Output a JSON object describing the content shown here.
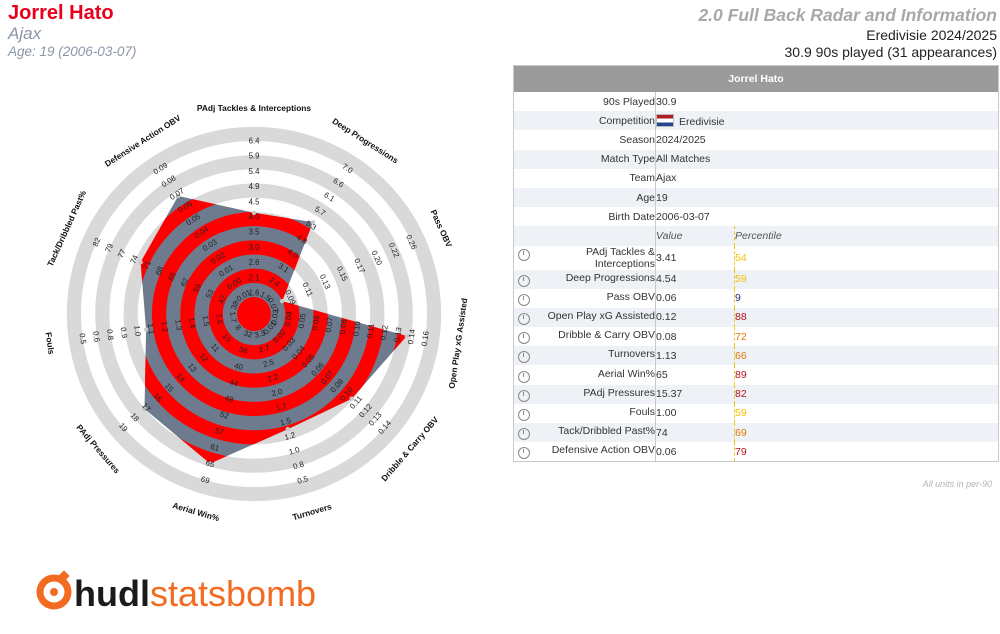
{
  "header": {
    "player_name": "Jorrel Hato",
    "team": "Ajax",
    "age_line": "Age: 19 (2006-03-07)",
    "report_title": "2.0 Full Back Radar and Information",
    "league_line": "Eredivisie 2024/2025",
    "played_line": "30.9 90s played (31 appearances)"
  },
  "info_table": {
    "title": "Jorrel Hato",
    "rows": [
      {
        "label": "90s Played",
        "value": "30.9"
      },
      {
        "label": "Competition",
        "value": "Eredivisie"
      },
      {
        "label": "Season",
        "value": "2024/2025"
      },
      {
        "label": "Match Type",
        "value": "All Matches"
      },
      {
        "label": "Team",
        "value": "Ajax"
      },
      {
        "label": "Age",
        "value": "19"
      },
      {
        "label": "Birth Date",
        "value": "2006-03-07"
      }
    ],
    "value_header": "Value",
    "percentile_header": "Percentile"
  },
  "footnote": "All units in per-90",
  "logo": {
    "part1": "hudl",
    "part2": "statsbomb"
  },
  "colors": {
    "red": "#ff0000",
    "slate": "#6e7a8e",
    "ring": "#d9d9d9",
    "pct_high": "#b5121b",
    "pct_mid": "#e07b00",
    "pct_low": "#f3c000",
    "pct_bottom": "#1f2d6e"
  },
  "chart_data": {
    "type": "radar",
    "metrics": [
      {
        "name": "PAdj Tackles & Interceptions",
        "value": "3.41",
        "percentile": 54,
        "ticks": [
          "1.6",
          "2.1",
          "2.6",
          "3.0",
          "3.5",
          "4.0",
          "4.5",
          "4.9",
          "5.4",
          "5.9",
          "6.4"
        ]
      },
      {
        "name": "Deep Progressions",
        "value": "4.54",
        "percentile": 59,
        "ticks": [
          "1.5",
          "2.4",
          "3.1",
          "4.0",
          "4.8",
          "5.3",
          "5.7",
          "6.1",
          "6.6",
          "7.0"
        ]
      },
      {
        "name": "Pass OBV",
        "value": "0.06",
        "percentile": 9,
        "ticks": [
          "0.07",
          "0.09",
          "0.11",
          "0.13",
          "0.15",
          "0.17",
          "0.20",
          "0.22",
          "0.26"
        ]
      },
      {
        "name": "Open Play xG Assisted",
        "value": "0.12",
        "percentile": 88,
        "ticks": [
          "0.03",
          "0.04",
          "0.05",
          "0.06",
          "0.07",
          "0.08",
          "0.10",
          "0.11",
          "0.12",
          "0.13",
          "0.14",
          "0.16"
        ]
      },
      {
        "name": "Dribble & Carry OBV",
        "value": "0.08",
        "percentile": 72,
        "ticks": [
          "0.01",
          "0.02",
          "0.03",
          "0.04",
          "0.05",
          "0.06",
          "0.07",
          "0.09",
          "0.10",
          "0.11",
          "0.12",
          "0.13",
          "0.14"
        ]
      },
      {
        "name": "Turnovers",
        "value": "1.13",
        "percentile": 66,
        "ticks": [
          "3.3",
          "2.7",
          "2.5",
          "2.2",
          "2.0",
          "1.7",
          "1.5",
          "1.2",
          "1.0",
          "0.8",
          "0.5"
        ]
      },
      {
        "name": "Aerial Win%",
        "value": "65",
        "percentile": 89,
        "ticks": [
          "32",
          "36",
          "40",
          "44",
          "48",
          "52",
          "57",
          "61",
          "65",
          "69"
        ]
      },
      {
        "name": "PAdj Pressures",
        "value": "15.37",
        "percentile": 82,
        "ticks": [
          "8",
          "10",
          "11",
          "12",
          "13",
          "14",
          "15",
          "16",
          "17",
          "18",
          "19"
        ]
      },
      {
        "name": "Fouls",
        "value": "1.00",
        "percentile": 59,
        "ticks": [
          "1.7",
          "1.6",
          "1.5",
          "1.4",
          "1.3",
          "1.2",
          "1.1",
          "1.0",
          "0.9",
          "0.8",
          "0.6",
          "0.5"
        ]
      },
      {
        "name": "Tack/Dribbled Past%",
        "value": "74",
        "percentile": 69,
        "ticks": [
          "38",
          "47",
          "53",
          "59",
          "62",
          "65",
          "68",
          "71",
          "74",
          "77",
          "79",
          "82"
        ]
      },
      {
        "name": "Defensive Action OBV",
        "value": "0.06",
        "percentile": 79,
        "ticks": [
          "-0.01",
          "0.00",
          "0.01",
          "0.02",
          "0.03",
          "0.04",
          "0.05",
          "0.06",
          "0.07",
          "0.08",
          "0.09"
        ]
      }
    ]
  }
}
